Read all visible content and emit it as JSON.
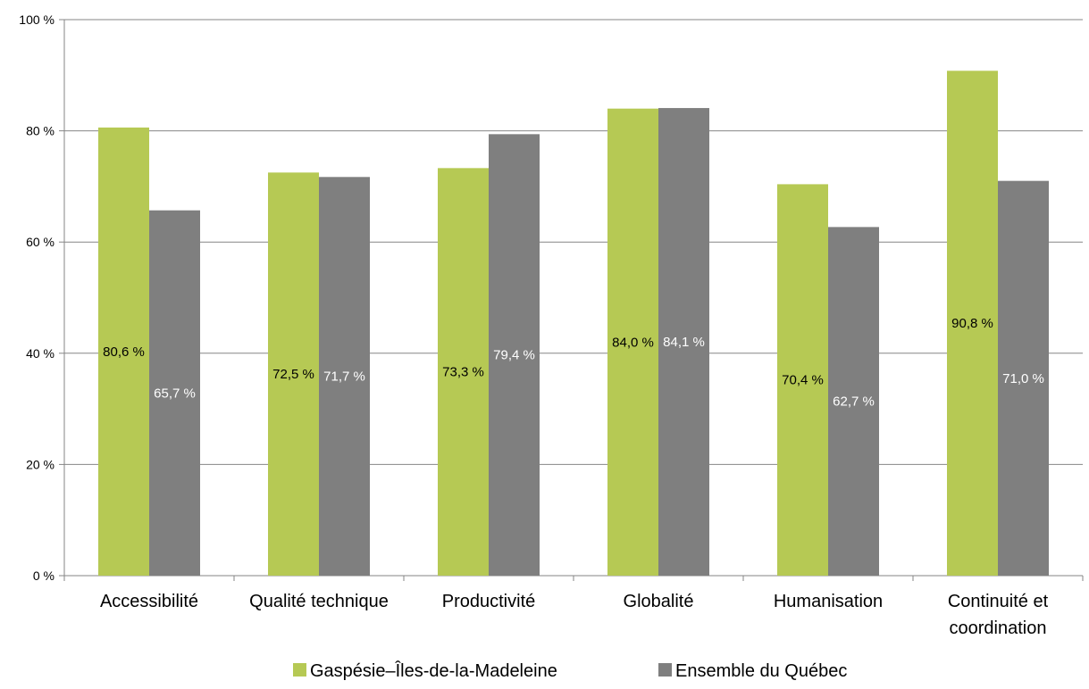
{
  "chart_data": {
    "type": "bar",
    "categories": [
      "Accessibilité",
      "Qualité technique",
      "Productivité",
      "Globalité",
      "Humanisation",
      "Continuité et coordination"
    ],
    "category_lines": [
      [
        "Accessibilité"
      ],
      [
        "Qualité technique"
      ],
      [
        "Productivité"
      ],
      [
        "Globalité"
      ],
      [
        "Humanisation"
      ],
      [
        "Continuité et",
        "coordination"
      ]
    ],
    "series": [
      {
        "name": "Gaspésie–Îles-de-la-Madeleine",
        "color": "#b6c954",
        "label_color": "#000000",
        "values": [
          80.6,
          72.5,
          73.3,
          84.0,
          70.4,
          90.8
        ],
        "labels": [
          "80,6 %",
          "72,5 %",
          "73,3 %",
          "84,0 %",
          "70,4 %",
          "90,8 %"
        ]
      },
      {
        "name": "Ensemble du Québec",
        "color": "#7f7f7f",
        "label_color": "#ffffff",
        "values": [
          65.7,
          71.7,
          79.4,
          84.1,
          62.7,
          71.0
        ],
        "labels": [
          "65,7 %",
          "71,7 %",
          "79,4 %",
          "84,1 %",
          "62,7 %",
          "71,0 %"
        ]
      }
    ],
    "ylim": [
      0,
      100
    ],
    "yticks": [
      0,
      20,
      40,
      60,
      80,
      100
    ],
    "ytick_labels": [
      "0 %",
      "20 %",
      "40 %",
      "60 %",
      "80 %",
      "100 %"
    ],
    "grid": true,
    "legend_position": "bottom",
    "title": "",
    "xlabel": "",
    "ylabel": ""
  }
}
